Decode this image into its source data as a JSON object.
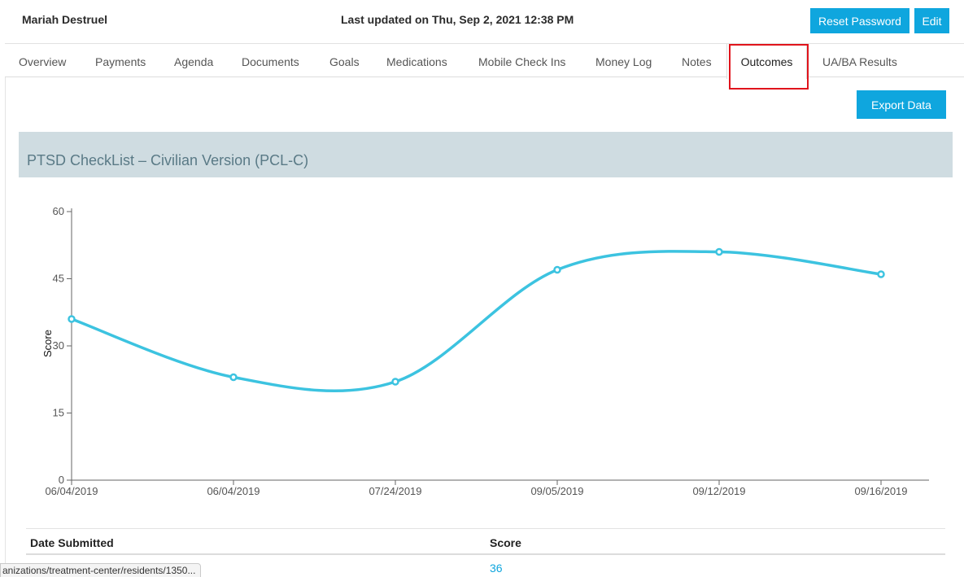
{
  "header": {
    "resident_name": "Mariah Destruel",
    "last_updated": "Last updated on Thu, Sep 2, 2021 12:38 PM",
    "reset_password_label": "Reset Password",
    "edit_label": "Edit"
  },
  "tabs": [
    {
      "label": "Overview"
    },
    {
      "label": "Payments"
    },
    {
      "label": "Agenda"
    },
    {
      "label": "Documents"
    },
    {
      "label": "Goals"
    },
    {
      "label": "Medications"
    },
    {
      "label": "Mobile Check Ins"
    },
    {
      "label": "Money Log"
    },
    {
      "label": "Notes"
    },
    {
      "label": "Outcomes",
      "active": true
    },
    {
      "label": "UA/BA Results"
    }
  ],
  "toolbar": {
    "export_label": "Export Data"
  },
  "section": {
    "title": "PTSD CheckList – Civilian Version (PCL-C)"
  },
  "chart_data": {
    "type": "line",
    "title": "",
    "xlabel": "",
    "ylabel": "Score",
    "categories": [
      "06/04/2019",
      "06/04/2019",
      "07/24/2019",
      "09/05/2019",
      "09/12/2019",
      "09/16/2019"
    ],
    "series": [
      {
        "values": [
          36,
          23,
          22,
          47,
          51,
          46
        ]
      }
    ],
    "yticks": [
      0,
      15,
      30,
      45,
      60
    ],
    "ylim": [
      0,
      60
    ],
    "grid": false,
    "line_color": "#3cc3e0"
  },
  "table": {
    "headers": {
      "date": "Date Submitted",
      "score": "Score"
    },
    "rows": [
      {
        "date": "",
        "score": "36"
      }
    ]
  },
  "status_bar": {
    "url": "anizations/treatment-center/residents/1350..."
  }
}
